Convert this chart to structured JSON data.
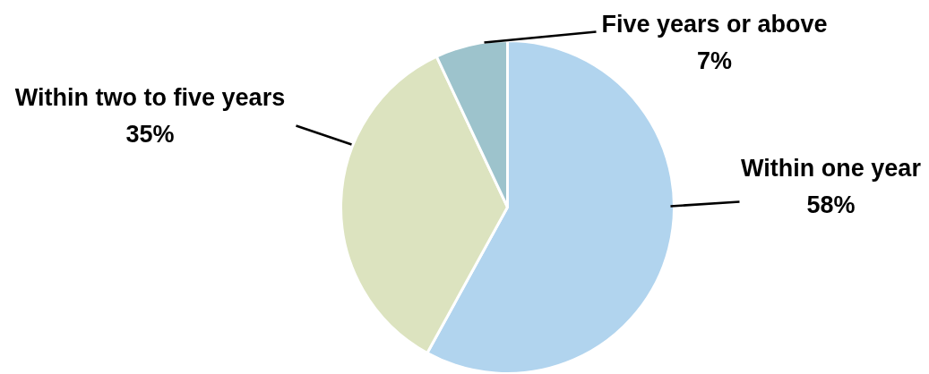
{
  "chart_data": {
    "type": "pie",
    "categories": [
      "Within one year",
      "Within two to five years",
      "Five years or above"
    ],
    "values": [
      58,
      35,
      7
    ],
    "value_labels": [
      "58%",
      "35%",
      "7%"
    ],
    "colors": [
      "#b1d4ee",
      "#dce3bf",
      "#9dc3cc"
    ]
  }
}
